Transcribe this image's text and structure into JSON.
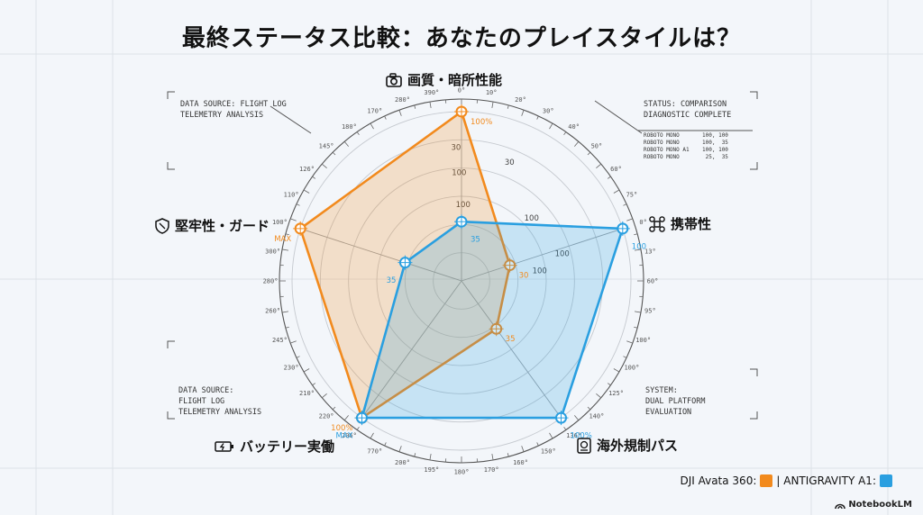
{
  "title": "最終ステータス比較：あなたのプレイスタイルは？",
  "panels": {
    "top_left": "DATA SOURCE: FLIGHT LOG\nTELEMETRY ANALYSIS",
    "top_right": "STATUS: COMPARISON\nDIAGNOSTIC COMPLETE",
    "top_right_small": "ROBOTO MONO       100, 100\nROBOTO MONO       100,  35\nROBOTO MONO A1    100, 100\nROBOTO MONO        25,  35",
    "bottom_left": "DATA SOURCE:\nFLIGHT LOG\nTELEMETRY ANALYSIS",
    "bottom_right": "SYSTEM:\nDUAL PLATFORM\nEVALUATION"
  },
  "legend": {
    "dji": "DJI Avata 360:",
    "anti": "| ANTIGRAVITY A1:"
  },
  "brand": "NotebookLM",
  "colors": {
    "orange": "#f28a1d",
    "blue": "#2a9fe0",
    "grid": "#c5c9cf"
  },
  "chart_data": {
    "type": "radar",
    "axes": [
      "画質・暗所性能",
      "携帯性",
      "海外規制パス",
      "バッテリー実働",
      "堅牢性・ガード"
    ],
    "axis_icons": [
      "camera-icon",
      "drone-icon",
      "passport-icon",
      "battery-icon",
      "shield-icon"
    ],
    "rmax": 100,
    "series": [
      {
        "name": "DJI Avata 360",
        "color": "#f28a1d",
        "values": [
          100,
          30,
          35,
          100,
          100
        ],
        "labels": [
          "100%",
          "30",
          "35",
          "100%",
          "MAX"
        ]
      },
      {
        "name": "ANTIGRAVITY A1",
        "color": "#2a9fe0",
        "values": [
          35,
          100,
          100,
          100,
          35
        ],
        "labels": [
          "35",
          "100",
          "100%",
          "MAX",
          "35"
        ]
      }
    ],
    "grid_labels": [
      {
        "text": "30"
      },
      {
        "text": "100"
      },
      {
        "text": "100"
      },
      {
        "text": "30"
      },
      {
        "text": "100"
      },
      {
        "text": "100"
      },
      {
        "text": "100"
      }
    ],
    "ring_ticks": [
      "0°",
      "10°",
      "20°",
      "30°",
      "40°",
      "50°",
      "60°",
      "75°",
      "0°",
      "13°",
      "60°",
      "95°",
      "100°",
      "100°",
      "125°",
      "140°",
      "136°",
      "150°",
      "160°",
      "170°",
      "180°",
      "195°",
      "200°",
      "770°",
      "206°",
      "220°",
      "210°",
      "230°",
      "245°",
      "260°",
      "280°",
      "300°",
      "100°",
      "110°",
      "126°",
      "145°",
      "180°",
      "170°",
      "280°",
      "390°"
    ]
  }
}
